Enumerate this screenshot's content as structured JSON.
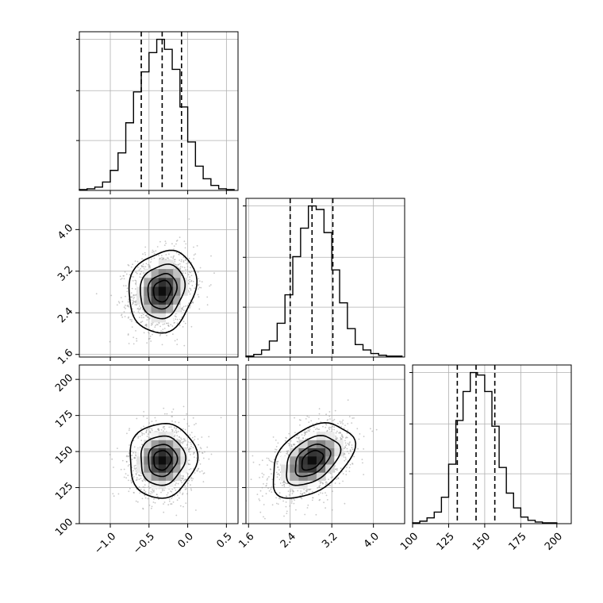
{
  "chart_data": {
    "type": "corner",
    "title": "",
    "parameters": [
      {
        "name": "",
        "range": [
          -1.4,
          0.65
        ],
        "ticks": [
          -1.0,
          -0.5,
          0.0,
          0.5
        ],
        "tick_labels": [
          "−1.0",
          "−0.5",
          "0.0",
          "0.5"
        ],
        "quantiles": [
          -0.6,
          -0.33,
          -0.08
        ]
      },
      {
        "name": "",
        "range": [
          1.55,
          4.6
        ],
        "ticks": [
          1.6,
          2.4,
          3.2,
          4.0
        ],
        "tick_labels": [
          "1.6",
          "2.4",
          "3.2",
          "4.0"
        ],
        "quantiles": [
          2.4,
          2.82,
          3.22
        ]
      },
      {
        "name": "",
        "range": [
          100,
          210
        ],
        "ticks": [
          100,
          125,
          150,
          175,
          200
        ],
        "tick_labels": [
          "100",
          "125",
          "150",
          "175",
          "200"
        ],
        "quantiles": [
          131,
          144,
          157
        ]
      }
    ],
    "histograms": [
      {
        "parameter": 0,
        "bin_edges": [
          -1.4,
          -1.3,
          -1.2,
          -1.1,
          -1.0,
          -0.9,
          -0.8,
          -0.7,
          -0.6,
          -0.5,
          -0.4,
          -0.3,
          -0.2,
          -0.1,
          0.0,
          0.1,
          0.2,
          0.3,
          0.4,
          0.5,
          0.6
        ],
        "counts": [
          1,
          2,
          4,
          10,
          24,
          45,
          81,
          118,
          142,
          165,
          181,
          169,
          145,
          100,
          58,
          29,
          14,
          6,
          2,
          1
        ]
      },
      {
        "parameter": 1,
        "bin_edges": [
          1.55,
          1.7,
          1.85,
          2.0,
          2.15,
          2.3,
          2.45,
          2.6,
          2.75,
          2.9,
          3.05,
          3.2,
          3.35,
          3.5,
          3.65,
          3.8,
          3.95,
          4.1,
          4.25,
          4.4,
          4.55
        ],
        "counts": [
          1,
          3,
          8,
          18,
          38,
          70,
          113,
          145,
          170,
          166,
          140,
          98,
          61,
          32,
          14,
          8,
          4,
          2,
          1,
          1
        ]
      },
      {
        "parameter": 2,
        "bin_edges": [
          100,
          105,
          110,
          115,
          120,
          125,
          130,
          135,
          140,
          145,
          150,
          155,
          160,
          165,
          170,
          175,
          180,
          185,
          190,
          195,
          200
        ],
        "counts": [
          1,
          3,
          7,
          14,
          32,
          72,
          125,
          160,
          183,
          180,
          160,
          118,
          68,
          37,
          19,
          8,
          4,
          2,
          1,
          1
        ]
      }
    ],
    "pairs": [
      {
        "x": 0,
        "y": 1,
        "mean": [
          -0.33,
          2.82
        ],
        "sd": [
          0.21,
          0.38
        ],
        "rho": 0.15
      },
      {
        "x": 0,
        "y": 2,
        "mean": [
          -0.33,
          144
        ],
        "sd": [
          0.21,
          12.5
        ],
        "rho": 0.05
      },
      {
        "x": 1,
        "y": 2,
        "mean": [
          2.82,
          144
        ],
        "sd": [
          0.38,
          12.5
        ],
        "rho": 0.42
      }
    ],
    "contour_levels_sigma": [
      0.5,
      1.0,
      1.5,
      2.0
    ],
    "grid": true,
    "legend": "none"
  }
}
